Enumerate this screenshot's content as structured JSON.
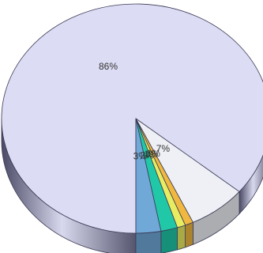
{
  "chart_data": {
    "type": "pie",
    "style": "3d-tilted",
    "slices": [
      {
        "label": "86%",
        "value": 86,
        "color": "#dcdcf4"
      },
      {
        "label": "7%",
        "value": 7,
        "color": "#eef0f6"
      },
      {
        "label": "1%",
        "value": 1,
        "color": "#f0b840"
      },
      {
        "label": "1%",
        "value": 1,
        "color": "#e8ec60"
      },
      {
        "label": "2%",
        "value": 2,
        "color": "#20c8a8"
      },
      {
        "label": "3%",
        "value": 3,
        "color": "#70a8d8"
      }
    ],
    "legend": "none"
  }
}
